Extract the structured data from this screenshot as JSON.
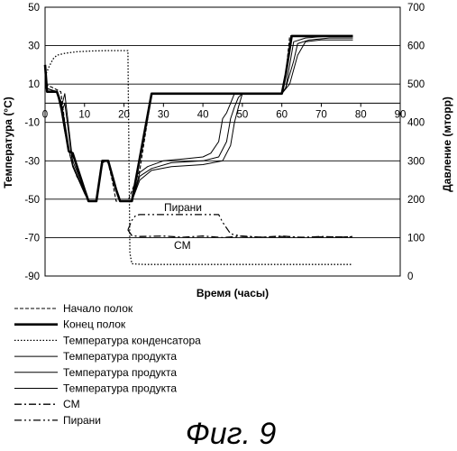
{
  "chart_data": {
    "type": "line",
    "xlabel": "Время (часы)",
    "ylabel_left": "Температура (°C)",
    "ylabel_right": "Давление (мторр)",
    "x_ticks": [
      "0",
      "10",
      "20",
      "30",
      "40",
      "50",
      "60",
      "70",
      "80",
      "90"
    ],
    "y_left_ticks": [
      "50",
      "30",
      "10",
      "-10",
      "-30",
      "-50",
      "-70",
      "-90"
    ],
    "y_right_ticks": [
      "700",
      "600",
      "500",
      "400",
      "300",
      "200",
      "100",
      "0"
    ],
    "xlim": [
      0,
      90
    ],
    "ylim_left": [
      -90,
      50
    ],
    "ylim_right": [
      0,
      700
    ],
    "grid": "horizontal",
    "legend_position": "bottom",
    "annotations": [
      "Пирани",
      "CM"
    ],
    "caption": "Фиг. 9",
    "series": [
      {
        "name": "Начало полок",
        "axis": "left",
        "style": "dashed-thin",
        "points": [
          [
            0,
            10
          ],
          [
            1,
            9
          ],
          [
            2,
            8
          ],
          [
            3,
            7
          ],
          [
            4,
            6
          ],
          [
            5,
            -10
          ],
          [
            6,
            -25
          ],
          [
            7,
            -32
          ],
          [
            8,
            -38
          ],
          [
            10,
            -45
          ],
          [
            11,
            -51
          ],
          [
            13,
            -51
          ],
          [
            14,
            -35
          ],
          [
            15,
            -30
          ],
          [
            16,
            -31
          ],
          [
            17,
            -40
          ],
          [
            18,
            -51
          ],
          [
            21,
            -51
          ],
          [
            24,
            -35
          ],
          [
            27,
            5
          ],
          [
            30,
            5
          ],
          [
            40,
            5
          ],
          [
            50,
            5
          ],
          [
            55,
            5
          ],
          [
            60,
            5
          ],
          [
            61,
            15
          ],
          [
            62,
            35
          ],
          [
            65,
            35
          ],
          [
            70,
            35
          ],
          [
            78,
            35
          ]
        ]
      },
      {
        "name": "Конец полок",
        "axis": "left",
        "style": "thick",
        "points": [
          [
            0,
            20
          ],
          [
            0.5,
            6
          ],
          [
            3,
            6
          ],
          [
            4,
            0
          ],
          [
            6,
            -25
          ],
          [
            7,
            -26
          ],
          [
            10,
            -45
          ],
          [
            11,
            -51
          ],
          [
            13,
            -51
          ],
          [
            14.5,
            -30
          ],
          [
            16,
            -30
          ],
          [
            18,
            -45
          ],
          [
            19,
            -51
          ],
          [
            22,
            -51
          ],
          [
            27,
            5
          ],
          [
            40,
            5
          ],
          [
            50,
            5
          ],
          [
            60,
            5
          ],
          [
            61,
            15
          ],
          [
            62.5,
            35
          ],
          [
            70,
            35
          ],
          [
            78,
            35
          ]
        ]
      },
      {
        "name": "Температура конденсатора",
        "axis": "right",
        "style": "dotted",
        "points": [
          [
            0,
            520
          ],
          [
            1,
            545
          ],
          [
            2,
            565
          ],
          [
            3,
            575
          ],
          [
            5,
            580
          ],
          [
            8,
            584
          ],
          [
            12,
            586
          ],
          [
            16,
            587
          ],
          [
            21,
            587
          ],
          [
            21.5,
            60
          ],
          [
            22,
            32
          ],
          [
            25,
            30
          ],
          [
            30,
            30
          ],
          [
            40,
            30
          ],
          [
            50,
            30
          ],
          [
            60,
            30
          ],
          [
            70,
            30
          ],
          [
            78,
            30
          ]
        ]
      },
      {
        "name": "Температура продукта",
        "axis": "left",
        "style": "thin",
        "points": [
          [
            0,
            8
          ],
          [
            3,
            6
          ],
          [
            4,
            -3
          ],
          [
            5,
            5
          ],
          [
            7,
            -30
          ],
          [
            10,
            -45
          ],
          [
            11,
            -51
          ],
          [
            13,
            -51
          ],
          [
            14.5,
            -30
          ],
          [
            16,
            -30
          ],
          [
            18,
            -45
          ],
          [
            19,
            -51
          ],
          [
            22,
            -51
          ],
          [
            24,
            -36
          ],
          [
            26,
            -33
          ],
          [
            30,
            -30
          ],
          [
            35,
            -29
          ],
          [
            40,
            -28
          ],
          [
            42,
            -26
          ],
          [
            44,
            -20
          ],
          [
            45,
            -8
          ],
          [
            46,
            -5
          ],
          [
            47,
            0
          ],
          [
            48,
            5
          ],
          [
            55,
            5
          ],
          [
            60,
            5
          ],
          [
            61,
            8
          ],
          [
            62,
            20
          ],
          [
            63,
            32
          ],
          [
            66,
            34
          ],
          [
            72,
            35
          ],
          [
            78,
            35
          ]
        ]
      },
      {
        "name": "Температура продукта",
        "axis": "left",
        "style": "thin",
        "points": [
          [
            0,
            8
          ],
          [
            3,
            6
          ],
          [
            4.5,
            -3
          ],
          [
            5,
            0
          ],
          [
            7,
            -32
          ],
          [
            10,
            -46
          ],
          [
            11,
            -51
          ],
          [
            13,
            -51
          ],
          [
            14.5,
            -30
          ],
          [
            16,
            -30
          ],
          [
            18,
            -45
          ],
          [
            19,
            -51
          ],
          [
            22,
            -51
          ],
          [
            24,
            -38
          ],
          [
            27,
            -34
          ],
          [
            32,
            -31
          ],
          [
            40,
            -30
          ],
          [
            44,
            -28
          ],
          [
            46,
            -20
          ],
          [
            47,
            -8
          ],
          [
            48,
            -2
          ],
          [
            49,
            3
          ],
          [
            50,
            5
          ],
          [
            55,
            5
          ],
          [
            60,
            5
          ],
          [
            61,
            8
          ],
          [
            63,
            22
          ],
          [
            64,
            31
          ],
          [
            67,
            33
          ],
          [
            72,
            34
          ],
          [
            78,
            34
          ]
        ]
      },
      {
        "name": "Температура продукта",
        "axis": "left",
        "style": "thin",
        "points": [
          [
            0,
            8
          ],
          [
            3,
            6
          ],
          [
            4,
            -3
          ],
          [
            5,
            -15
          ],
          [
            7,
            -33
          ],
          [
            10,
            -47
          ],
          [
            11,
            -51
          ],
          [
            13,
            -51
          ],
          [
            14.5,
            -30
          ],
          [
            16,
            -30
          ],
          [
            18,
            -45
          ],
          [
            19,
            -51
          ],
          [
            22,
            -51
          ],
          [
            24,
            -40
          ],
          [
            27,
            -35
          ],
          [
            32,
            -33
          ],
          [
            40,
            -32
          ],
          [
            45,
            -30
          ],
          [
            47,
            -22
          ],
          [
            48,
            -10
          ],
          [
            49,
            -2
          ],
          [
            50,
            5
          ],
          [
            55,
            5
          ],
          [
            60,
            5
          ],
          [
            62,
            10
          ],
          [
            64,
            25
          ],
          [
            66,
            32
          ],
          [
            70,
            33
          ],
          [
            78,
            33
          ]
        ]
      },
      {
        "name": "CM",
        "axis": "right",
        "style": "dashdot",
        "points": [
          [
            21,
            120
          ],
          [
            22,
            105
          ],
          [
            24,
            103
          ],
          [
            30,
            104
          ],
          [
            35,
            101
          ],
          [
            40,
            104
          ],
          [
            45,
            100
          ],
          [
            50,
            104
          ],
          [
            55,
            101
          ],
          [
            60,
            104
          ],
          [
            65,
            100
          ],
          [
            70,
            103
          ],
          [
            75,
            101
          ],
          [
            78,
            103
          ]
        ]
      },
      {
        "name": "Пирани",
        "axis": "right",
        "style": "dashdotdot",
        "points": [
          [
            21,
            120
          ],
          [
            22,
            145
          ],
          [
            23,
            158
          ],
          [
            24,
            160
          ],
          [
            30,
            160
          ],
          [
            40,
            160
          ],
          [
            44,
            160
          ],
          [
            45,
            140
          ],
          [
            47,
            110
          ],
          [
            50,
            103
          ],
          [
            55,
            101
          ],
          [
            60,
            103
          ],
          [
            65,
            101
          ],
          [
            70,
            102
          ],
          [
            78,
            102
          ]
        ]
      }
    ]
  }
}
